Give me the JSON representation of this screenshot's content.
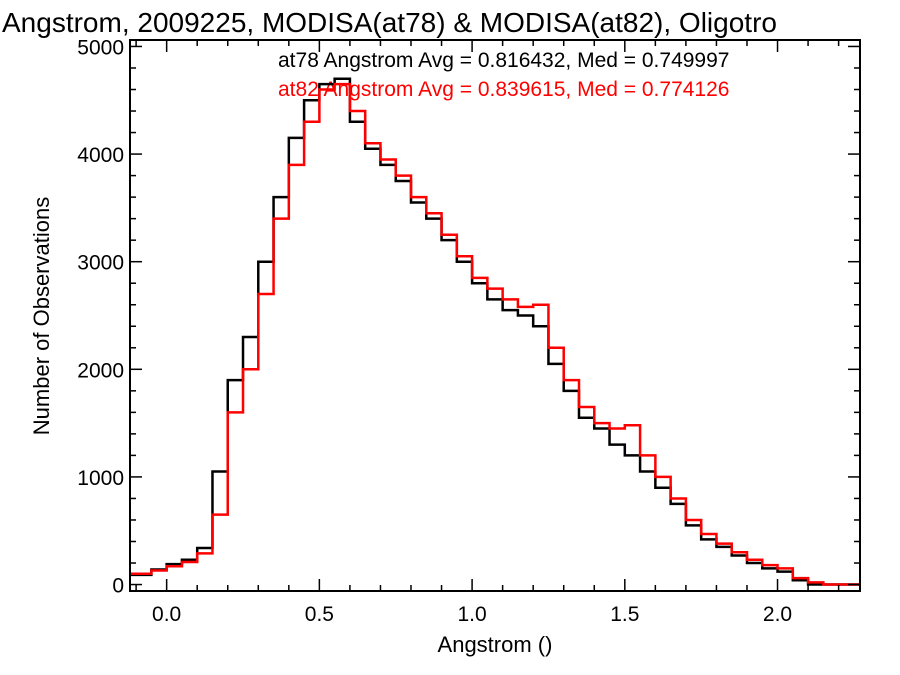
{
  "chart_data": {
    "type": "line",
    "style": "step-histogram",
    "title": "Angstrom, 2009225, MODISA(at78) & MODISA(at82), Oligotro",
    "xlabel": "Angstrom ()",
    "ylabel": "Number of Observations",
    "xlim": [
      -0.12,
      2.27
    ],
    "ylim": [
      -60,
      5060
    ],
    "xticks": [
      0.0,
      0.5,
      1.0,
      1.5,
      2.0
    ],
    "xtick_labels": [
      "0.0",
      "0.5",
      "1.0",
      "1.5",
      "2.0"
    ],
    "yticks": [
      0,
      1000,
      2000,
      3000,
      4000,
      5000
    ],
    "ytick_labels": [
      "0",
      "1000",
      "2000",
      "3000",
      "4000",
      "5000"
    ],
    "grid": false,
    "legend": "none",
    "annotations": [
      {
        "text": "at78 Angstrom Avg = 0.816432, Med = 0.749997",
        "color": "#000000"
      },
      {
        "text": "at82 Angstrom Avg = 0.839615, Med = 0.774126",
        "color": "#ff0000"
      }
    ],
    "series": [
      {
        "color": "#000000",
        "x": [
          -0.12,
          -0.05,
          0.0,
          0.05,
          0.1,
          0.15,
          0.2,
          0.25,
          0.3,
          0.35,
          0.4,
          0.45,
          0.5,
          0.55,
          0.6,
          0.65,
          0.7,
          0.75,
          0.8,
          0.85,
          0.9,
          0.95,
          1.0,
          1.05,
          1.1,
          1.15,
          1.2,
          1.25,
          1.3,
          1.35,
          1.4,
          1.45,
          1.5,
          1.55,
          1.6,
          1.65,
          1.7,
          1.75,
          1.8,
          1.85,
          1.9,
          1.95,
          2.0,
          2.05,
          2.1,
          2.15,
          2.2,
          2.27
        ],
        "y": [
          90,
          140,
          190,
          230,
          340,
          1050,
          1900,
          2300,
          3000,
          3600,
          4150,
          4500,
          4650,
          4700,
          4300,
          4050,
          3900,
          3750,
          3550,
          3400,
          3200,
          3000,
          2800,
          2650,
          2550,
          2500,
          2400,
          2050,
          1800,
          1550,
          1450,
          1300,
          1200,
          1050,
          900,
          750,
          550,
          420,
          350,
          270,
          200,
          150,
          120,
          40,
          0,
          0,
          0,
          0
        ]
      },
      {
        "color": "#ff0000",
        "x": [
          -0.12,
          -0.05,
          0.0,
          0.05,
          0.1,
          0.15,
          0.2,
          0.25,
          0.3,
          0.35,
          0.4,
          0.45,
          0.5,
          0.55,
          0.6,
          0.65,
          0.7,
          0.75,
          0.8,
          0.85,
          0.9,
          0.95,
          1.0,
          1.05,
          1.1,
          1.15,
          1.2,
          1.25,
          1.3,
          1.35,
          1.4,
          1.45,
          1.5,
          1.55,
          1.6,
          1.65,
          1.7,
          1.75,
          1.8,
          1.85,
          1.9,
          1.95,
          2.0,
          2.05,
          2.1,
          2.15,
          2.2,
          2.27
        ],
        "y": [
          100,
          130,
          170,
          210,
          290,
          650,
          1600,
          2000,
          2700,
          3400,
          3900,
          4300,
          4600,
          4650,
          4400,
          4100,
          3950,
          3800,
          3600,
          3450,
          3250,
          3050,
          2850,
          2750,
          2650,
          2580,
          2600,
          2200,
          1900,
          1650,
          1500,
          1450,
          1480,
          1200,
          1000,
          800,
          600,
          470,
          380,
          300,
          230,
          180,
          150,
          60,
          20,
          0,
          0,
          0
        ]
      }
    ]
  }
}
